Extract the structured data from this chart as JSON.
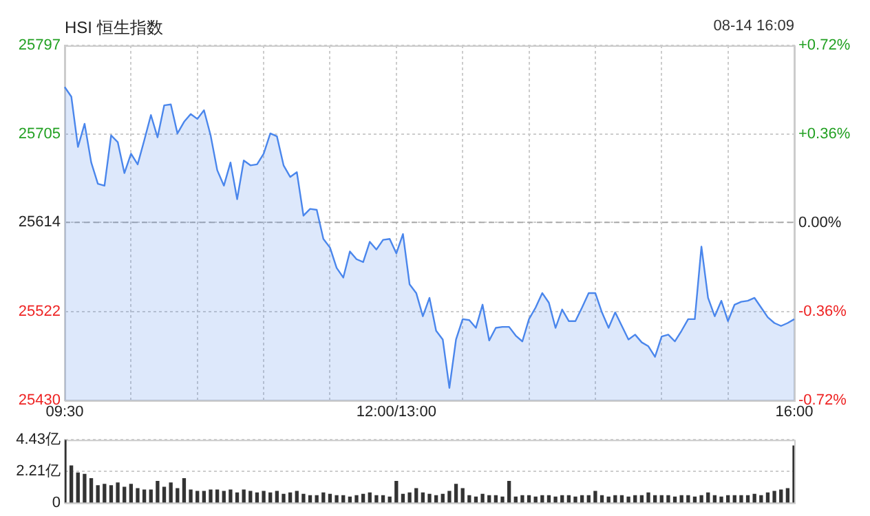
{
  "chart_data": [
    {
      "type": "area",
      "title": "HSI 恒生指数",
      "annotations": [
        "08-14 16:09"
      ],
      "categories": [
        "09:30",
        null,
        null,
        null,
        null,
        null,
        null,
        null,
        null,
        null,
        null,
        null,
        null,
        null,
        null,
        null,
        null,
        null,
        null,
        null,
        null,
        null,
        null,
        null,
        null,
        null,
        null,
        null,
        null,
        null,
        null,
        null,
        null,
        null,
        null,
        null,
        null,
        null,
        null,
        null,
        null,
        null,
        null,
        null,
        null,
        null,
        null,
        null,
        null,
        null,
        "12:00/13:00",
        null,
        null,
        null,
        null,
        null,
        null,
        null,
        null,
        null,
        null,
        null,
        null,
        null,
        null,
        null,
        null,
        null,
        null,
        null,
        null,
        null,
        null,
        null,
        null,
        null,
        null,
        null,
        null,
        null,
        null,
        null,
        null,
        null,
        null,
        null,
        null,
        null,
        null,
        null,
        null,
        null,
        null,
        null,
        null,
        null,
        null,
        null,
        null,
        null,
        null,
        null,
        null,
        null,
        null,
        null,
        null,
        null,
        null,
        null,
        "16:00"
      ],
      "series": [
        {
          "color": "#4a86ec",
          "values": [
            25754,
            25744,
            25692,
            25716,
            25676,
            25654,
            25652,
            25704,
            25697,
            25665,
            25685,
            25674,
            25699,
            25725,
            25702,
            25735,
            25736,
            25706,
            25718,
            25726,
            25721,
            25730,
            25704,
            25668,
            25652,
            25676,
            25638,
            25678,
            25673,
            25674,
            25685,
            25706,
            25703,
            25673,
            25661,
            25666,
            25621,
            25628,
            25627,
            25597,
            25588,
            25567,
            25557,
            25584,
            25576,
            25573,
            25594,
            25586,
            25596,
            25597,
            25582,
            25602,
            25550,
            25541,
            25517,
            25536,
            25502,
            25493,
            25443,
            25493,
            25514,
            25513,
            25505,
            25529,
            25492,
            25505,
            25506,
            25506,
            25497,
            25491,
            25514,
            25526,
            25541,
            25531,
            25505,
            25524,
            25512,
            25512,
            25526,
            25541,
            25541,
            25521,
            25505,
            25521,
            25507,
            25493,
            25498,
            25490,
            25486,
            25475,
            25496,
            25498,
            25491,
            25502,
            25514,
            25514,
            25589,
            25536,
            25517,
            25533,
            25512,
            25529,
            25532,
            25533,
            25536,
            25526,
            25516,
            25510,
            25507,
            25510,
            25514
          ]
        }
      ],
      "ylim": [
        25430,
        25797
      ],
      "yticks": [
        25430,
        25522,
        25614,
        25705,
        25797
      ],
      "y2lim": [
        -0.72,
        0.72
      ],
      "y2ticks": [
        {
          "value": -0.72,
          "label": "-0.72%"
        },
        {
          "value": -0.36,
          "label": "-0.36%"
        },
        {
          "value": 0,
          "label": "0.00%"
        },
        {
          "value": 0.36,
          "label": "+0.36%"
        },
        {
          "value": 0.72,
          "label": "+0.72%"
        }
      ],
      "ref_lines": [
        {
          "axis": "y",
          "value": 25614,
          "color": "#aaaaaa",
          "line_style": "dashed"
        }
      ],
      "grid": true,
      "marker": "none",
      "line_style": "solid"
    },
    {
      "type": "bar",
      "color": "#333333",
      "categories": [
        null,
        null,
        null,
        null,
        null,
        null,
        null,
        null,
        null,
        null,
        null,
        null,
        null,
        null,
        null,
        null,
        null,
        null,
        null,
        null,
        null,
        null,
        null,
        null,
        null,
        null,
        null,
        null,
        null,
        null,
        null,
        null,
        null,
        null,
        null,
        null,
        null,
        null,
        null,
        null,
        null,
        null,
        null,
        null,
        null,
        null,
        null,
        null,
        null,
        null,
        null,
        null,
        null,
        null,
        null,
        null,
        null,
        null,
        null,
        null,
        null,
        null,
        null,
        null,
        null,
        null,
        null,
        null,
        null,
        null,
        null,
        null,
        null,
        null,
        null,
        null,
        null,
        null,
        null,
        null,
        null,
        null,
        null,
        null,
        null,
        null,
        null,
        null,
        null,
        null,
        null,
        null,
        null,
        null,
        null,
        null,
        null,
        null,
        null,
        null,
        null,
        null,
        null,
        null,
        null,
        null,
        null,
        null,
        null,
        null,
        null
      ],
      "values": [
        4.4,
        2.6,
        2.1,
        2.0,
        1.7,
        1.2,
        1.3,
        1.2,
        1.4,
        1.1,
        1.3,
        1.0,
        0.9,
        0.9,
        1.5,
        1.1,
        1.4,
        1.0,
        1.7,
        0.9,
        0.8,
        0.8,
        0.9,
        0.9,
        0.8,
        0.9,
        0.7,
        0.9,
        0.8,
        0.7,
        0.8,
        0.7,
        0.8,
        0.6,
        0.7,
        0.8,
        0.6,
        0.5,
        0.5,
        0.7,
        0.6,
        0.5,
        0.5,
        0.4,
        0.5,
        0.6,
        0.7,
        0.5,
        0.5,
        0.4,
        1.5,
        0.6,
        0.7,
        1.0,
        0.7,
        0.6,
        0.5,
        0.6,
        0.8,
        1.3,
        1.0,
        0.5,
        0.4,
        0.6,
        0.5,
        0.5,
        0.4,
        1.5,
        0.4,
        0.5,
        0.5,
        0.4,
        0.5,
        0.5,
        0.4,
        0.5,
        0.5,
        0.4,
        0.5,
        0.5,
        0.8,
        0.5,
        0.4,
        0.5,
        0.5,
        0.4,
        0.5,
        0.5,
        0.7,
        0.5,
        0.5,
        0.5,
        0.4,
        0.5,
        0.5,
        0.4,
        0.5,
        0.7,
        0.5,
        0.4,
        0.5,
        0.5,
        0.5,
        0.5,
        0.6,
        0.5,
        0.7,
        0.8,
        0.9,
        1.0,
        4.0
      ],
      "ylim": [
        0,
        4.43
      ],
      "yticks": [
        0,
        {
          "value": 2.21,
          "label": "2.21亿"
        },
        {
          "value": 4.43,
          "label": "4.43亿"
        }
      ],
      "grid": "y",
      "tick_labels": "y"
    }
  ]
}
